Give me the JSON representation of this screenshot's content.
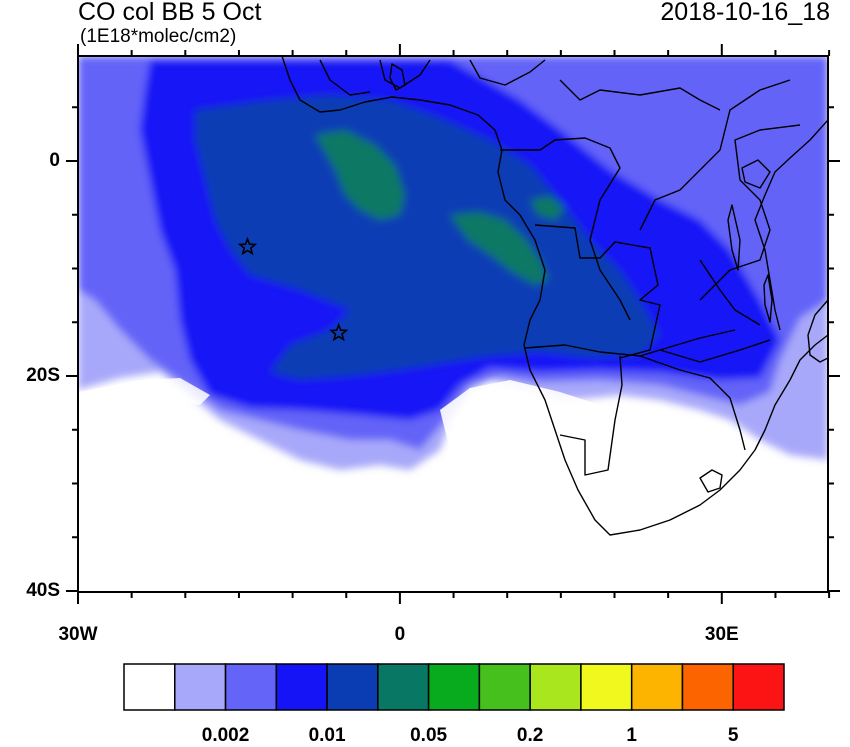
{
  "title": "CO col BB 5 Oct",
  "units": "(1E18*molec/cm2)",
  "timestamp": "2018-10-16_18",
  "lat_axis": {
    "labels": [
      {
        "lat": 0,
        "text": "0"
      },
      {
        "lat": -20,
        "text": "20S"
      },
      {
        "lat": -40,
        "text": "40S"
      }
    ]
  },
  "lon_axis": {
    "labels": [
      {
        "lon": -30,
        "text": "30W"
      },
      {
        "lon": 0,
        "text": "0"
      },
      {
        "lon": 30,
        "text": "30E"
      }
    ]
  },
  "colorbar": {
    "colors": [
      "#ffffff",
      "#a8a8fa",
      "#6464f8",
      "#1414f6",
      "#0a3cb4",
      "#087864",
      "#08aa1e",
      "#46c01c",
      "#aae61e",
      "#f0f81e",
      "#fcb400",
      "#fc6400",
      "#fc1414"
    ],
    "tick_labels": [
      "0.002",
      "0.01",
      "0.05",
      "0.2",
      "1",
      "5"
    ]
  },
  "markers": [
    {
      "name": "star-marker-1",
      "lon": -14.2,
      "lat": -8.0
    },
    {
      "name": "star-marker-2",
      "lon": -5.7,
      "lat": -16.0
    }
  ]
}
